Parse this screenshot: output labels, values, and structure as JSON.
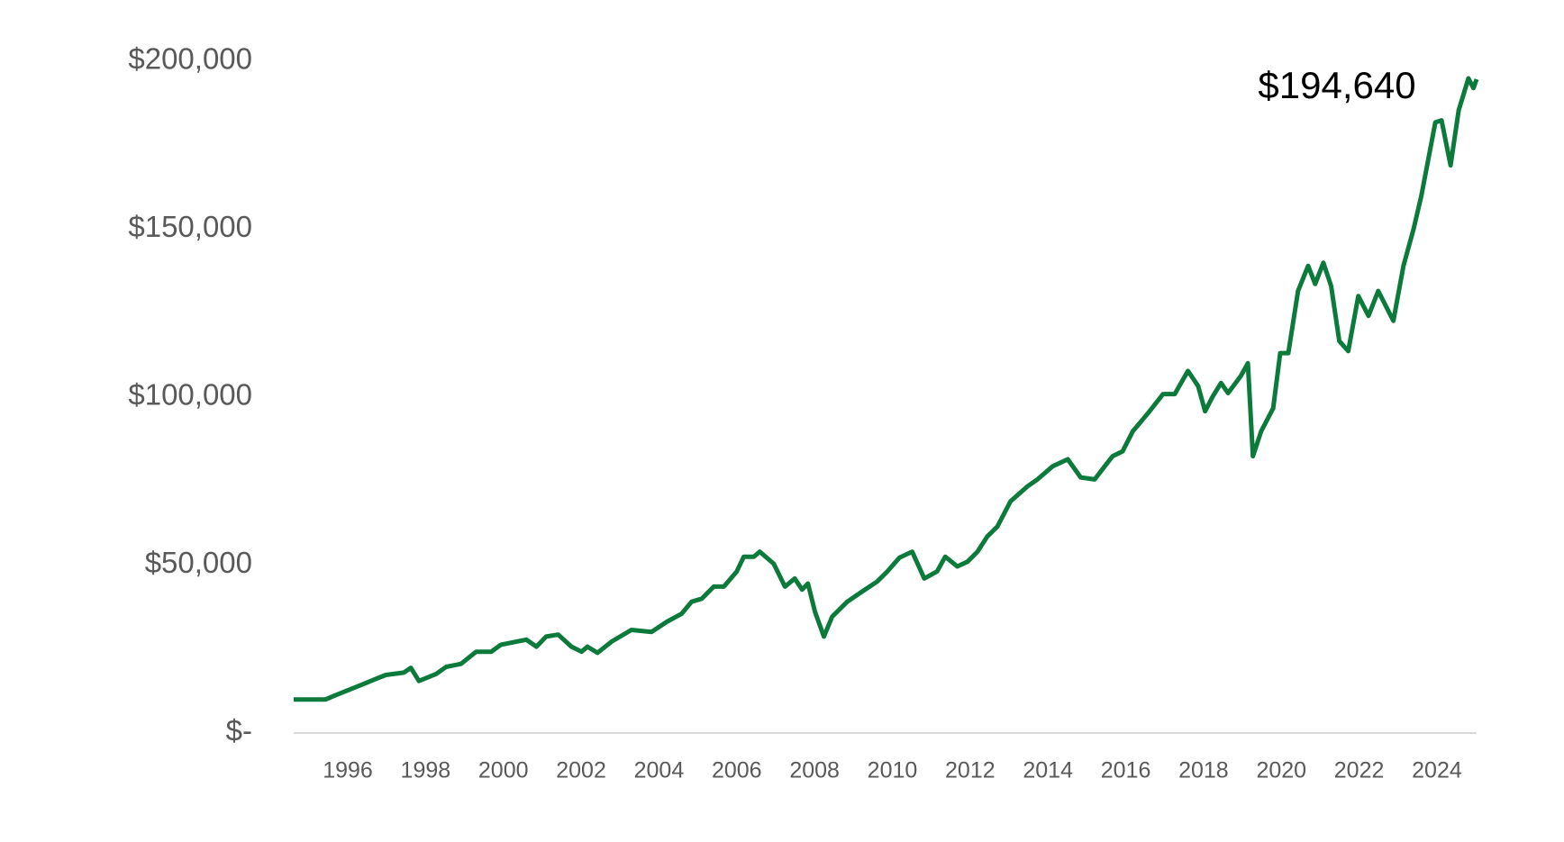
{
  "chart_data": {
    "type": "line",
    "annotation": "$194,640",
    "x": [
      1994.61,
      1995.43,
      1995.69,
      1996.34,
      1996.72,
      1996.98,
      1997.44,
      1997.62,
      1997.83,
      1998.27,
      1998.53,
      1998.91,
      1999.3,
      1999.69,
      1999.94,
      2000.2,
      2000.59,
      2000.85,
      2001.1,
      2001.41,
      2001.75,
      2002.01,
      2002.16,
      2002.42,
      2002.78,
      2003.29,
      2003.81,
      2004.2,
      2004.58,
      2004.84,
      2005.1,
      2005.41,
      2005.67,
      2006.0,
      2006.18,
      2006.44,
      2006.59,
      2006.95,
      2007.24,
      2007.49,
      2007.68,
      2007.83,
      2008.01,
      2008.24,
      2008.45,
      2008.84,
      2009.22,
      2009.61,
      2009.87,
      2010.18,
      2010.51,
      2010.82,
      2011.15,
      2011.36,
      2011.67,
      2011.93,
      2012.19,
      2012.44,
      2012.7,
      2013.04,
      2013.47,
      2013.73,
      2014.12,
      2014.51,
      2014.84,
      2015.2,
      2015.46,
      2015.66,
      2015.92,
      2016.18,
      2016.57,
      2016.96,
      2017.26,
      2017.6,
      2017.86,
      2018.04,
      2018.24,
      2018.45,
      2018.63,
      2018.96,
      2019.14,
      2019.27,
      2019.48,
      2019.79,
      2019.97,
      2020.18,
      2020.43,
      2020.69,
      2020.87,
      2021.08,
      2021.28,
      2021.49,
      2021.72,
      2021.98,
      2022.24,
      2022.49,
      2022.88,
      2023.14,
      2023.4,
      2023.6,
      2023.96,
      2024.12,
      2024.35,
      2024.56,
      2024.81,
      2024.94,
      2025.02
    ],
    "series": [
      {
        "color": "#0b7a3b",
        "values": [
          10000,
          10000,
          11300,
          14300,
          16100,
          17300,
          18000,
          19400,
          15500,
          17600,
          19700,
          20600,
          24200,
          24200,
          26300,
          26900,
          27800,
          25700,
          28700,
          29300,
          25700,
          24200,
          25700,
          23900,
          27200,
          30700,
          30100,
          33100,
          35500,
          39100,
          40000,
          43600,
          43600,
          48100,
          52500,
          52500,
          54000,
          50400,
          43600,
          46000,
          42700,
          44500,
          36100,
          28700,
          34600,
          39100,
          42100,
          45100,
          48100,
          52200,
          54000,
          46000,
          48100,
          52500,
          49600,
          51000,
          54000,
          58500,
          61500,
          69000,
          73400,
          75500,
          79400,
          81500,
          76100,
          75500,
          79400,
          82400,
          83900,
          89800,
          95200,
          100900,
          100900,
          107800,
          103300,
          95800,
          100300,
          104200,
          101200,
          106300,
          110100,
          82400,
          89800,
          96700,
          113100,
          113100,
          131600,
          139100,
          133700,
          140000,
          133100,
          116700,
          113700,
          130100,
          124200,
          131600,
          122700,
          139100,
          150100,
          160000,
          181800,
          182400,
          169000,
          185400,
          194900,
          192000,
          194640
        ]
      }
    ],
    "xlim": [
      1994.61,
      2025.02
    ],
    "xticks": [
      1996,
      1998,
      2000,
      2002,
      2004,
      2006,
      2008,
      2010,
      2012,
      2014,
      2016,
      2018,
      2020,
      2022,
      2024
    ],
    "ylim": [
      0,
      200000
    ],
    "yticks": [
      {
        "value": 0,
        "label": "$-"
      },
      {
        "value": 50000,
        "label": "$50,000"
      },
      {
        "value": 100000,
        "label": "$100,000"
      },
      {
        "value": 150000,
        "label": "$150,000"
      },
      {
        "value": 200000,
        "label": "$200,000"
      }
    ],
    "grid": false
  }
}
